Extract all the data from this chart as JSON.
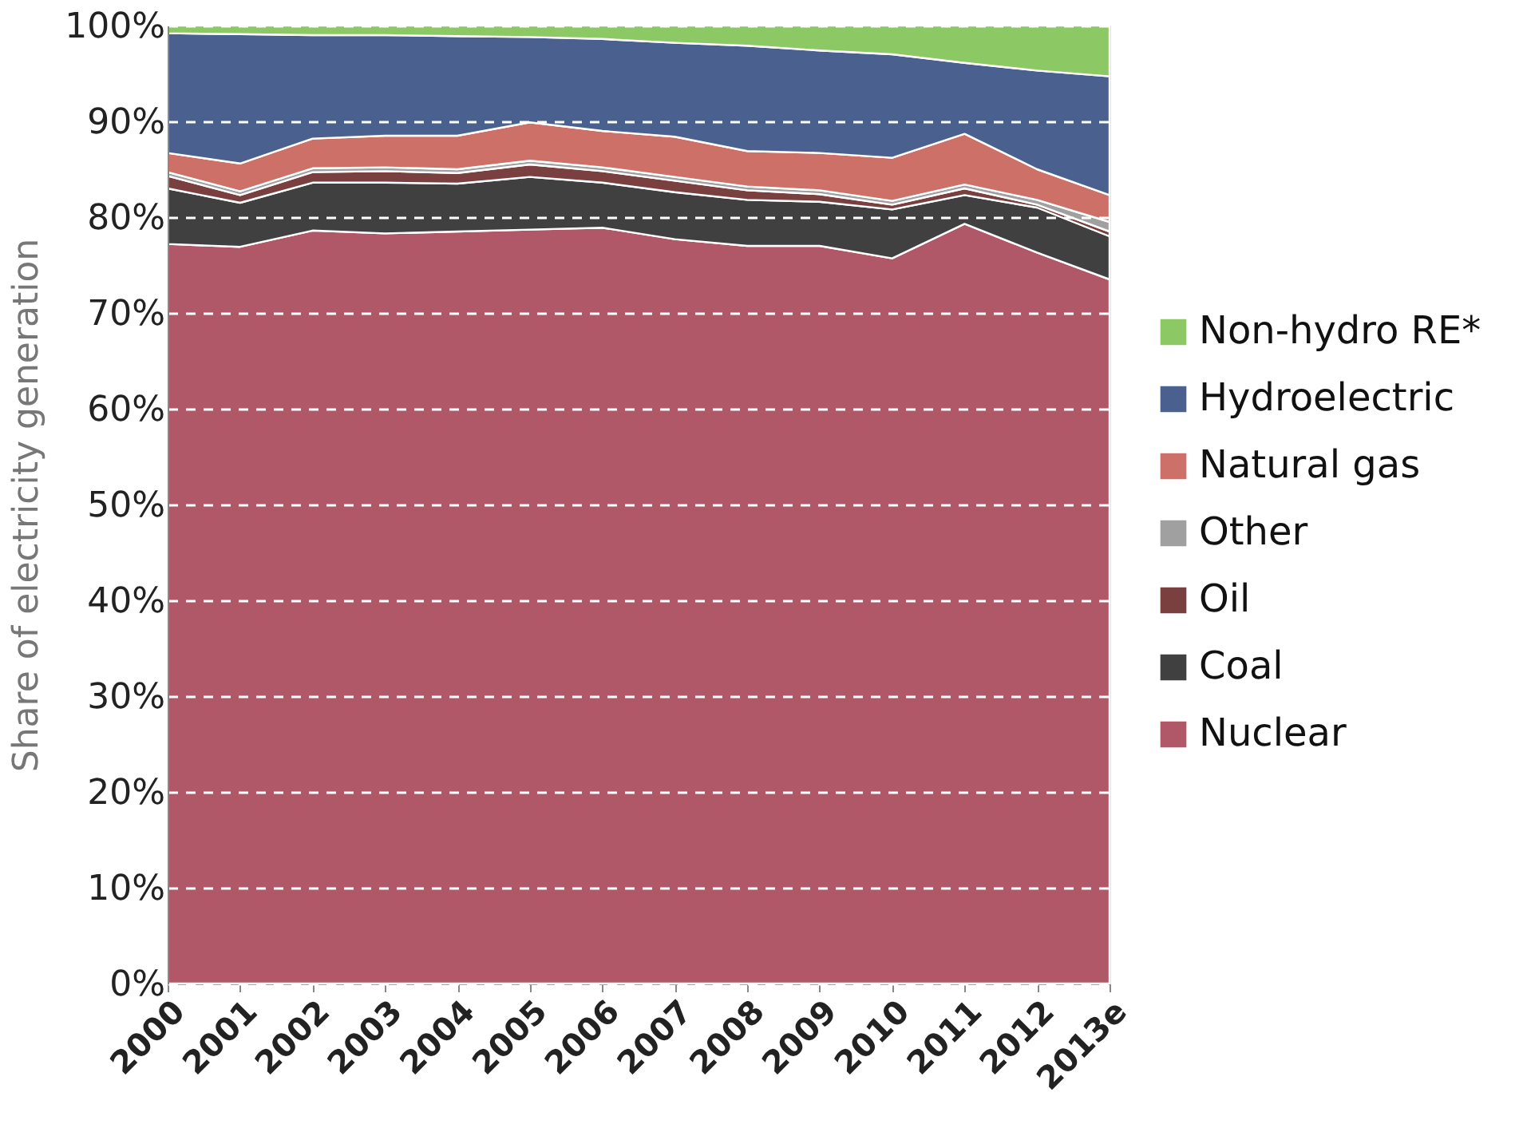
{
  "chart_data": {
    "type": "area",
    "stacked": true,
    "ylabel": "Share of electricity generation",
    "categories": [
      "2000",
      "2001",
      "2002",
      "2003",
      "2004",
      "2005",
      "2006",
      "2007",
      "2008",
      "2009",
      "2010",
      "2011",
      "2012",
      "2013e"
    ],
    "series": [
      {
        "name": "Nuclear",
        "color": "#b05868",
        "values": [
          77.2,
          76.9,
          78.6,
          78.3,
          78.5,
          78.7,
          78.9,
          77.7,
          77.0,
          77.0,
          75.7,
          79.3,
          76.3,
          73.5
        ]
      },
      {
        "name": "Coal",
        "color": "#404040",
        "values": [
          5.8,
          4.6,
          5.0,
          5.3,
          5.0,
          5.5,
          4.7,
          4.9,
          4.8,
          4.6,
          5.1,
          3.0,
          4.7,
          4.5
        ]
      },
      {
        "name": "Oil",
        "color": "#7a4040",
        "values": [
          1.3,
          0.8,
          1.1,
          1.2,
          1.1,
          1.3,
          1.2,
          1.2,
          1.0,
          0.8,
          0.5,
          0.7,
          0.3,
          0.5
        ]
      },
      {
        "name": "Other",
        "color": "#a0a0a0",
        "values": [
          0.4,
          0.4,
          0.4,
          0.4,
          0.4,
          0.4,
          0.4,
          0.4,
          0.4,
          0.4,
          0.4,
          0.4,
          0.5,
          1.0
        ]
      },
      {
        "name": "Natural gas",
        "color": "#cc7068",
        "values": [
          2.0,
          2.9,
          3.1,
          3.3,
          3.5,
          4.0,
          3.8,
          4.2,
          3.7,
          3.9,
          4.5,
          5.3,
          3.2,
          2.8
        ]
      },
      {
        "name": "Hydroelectric",
        "color": "#4a608e",
        "values": [
          12.5,
          13.5,
          10.8,
          10.5,
          10.4,
          8.9,
          9.6,
          9.8,
          11.0,
          10.7,
          10.8,
          7.4,
          10.3,
          12.4
        ]
      },
      {
        "name": "Non-hydro RE*",
        "color": "#8cc864",
        "values": [
          0.8,
          0.9,
          1.0,
          1.0,
          1.1,
          1.2,
          1.4,
          1.8,
          2.1,
          2.6,
          3.0,
          3.9,
          4.7,
          5.3
        ]
      }
    ],
    "ylim": [
      0,
      100
    ],
    "yticks": [
      {
        "value": 0,
        "label": "0%"
      },
      {
        "value": 10,
        "label": "10%"
      },
      {
        "value": 20,
        "label": "20%"
      },
      {
        "value": 30,
        "label": "30%"
      },
      {
        "value": 40,
        "label": "40%"
      },
      {
        "value": 50,
        "label": "50%"
      },
      {
        "value": 60,
        "label": "60%"
      },
      {
        "value": 70,
        "label": "70%"
      },
      {
        "value": 80,
        "label": "80%"
      },
      {
        "value": 90,
        "label": "90%"
      },
      {
        "value": 100,
        "label": "100%"
      }
    ],
    "grid": "y",
    "legend": "right"
  }
}
